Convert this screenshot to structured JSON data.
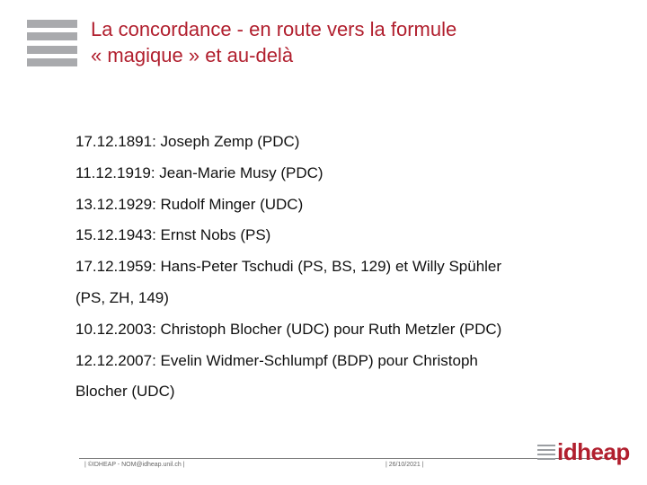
{
  "title": {
    "line1": "La concordance - en route vers la formule",
    "line2": "« magique » et au-delà"
  },
  "items": [
    "17.12.1891: Joseph Zemp (PDC)",
    "11.12.1919: Jean-Marie Musy (PDC)",
    "13.12.1929: Rudolf Minger (UDC)",
    "15.12.1943: Ernst Nobs (PS)",
    "17.12.1959: Hans-Peter Tschudi (PS, BS, 129) et Willy Spühler",
    "(PS, ZH, 149)",
    "10.12.2003: Christoph Blocher (UDC) pour Ruth Metzler (PDC)",
    "12.12.2007: Evelin Widmer-Schlumpf (BDP) pour Christoph",
    "Blocher (UDC)"
  ],
  "footer": {
    "left": "| ©IDHEAP - NOM@idheap.unil.ch |",
    "right": "| 26/10/2021 |"
  },
  "logo": {
    "text": "idheap",
    "color": "#b11f2e"
  },
  "colors": {
    "title": "#b11f2e",
    "decor": "#a9aaad"
  }
}
